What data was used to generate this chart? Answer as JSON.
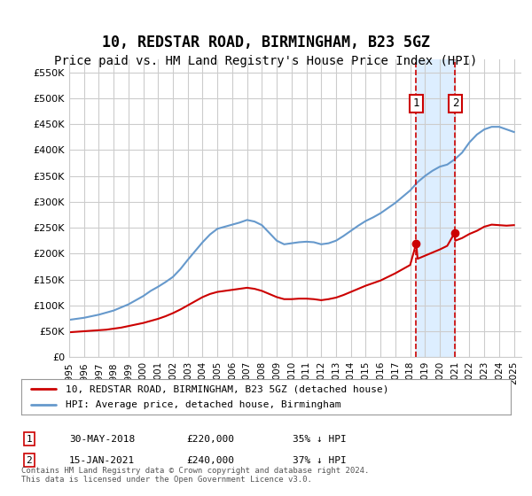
{
  "title": "10, REDSTAR ROAD, BIRMINGHAM, B23 5GZ",
  "subtitle": "Price paid vs. HM Land Registry's House Price Index (HPI)",
  "title_fontsize": 12,
  "subtitle_fontsize": 10,
  "ylabel_ticks": [
    "£0",
    "£50K",
    "£100K",
    "£150K",
    "£200K",
    "£250K",
    "£300K",
    "£350K",
    "£400K",
    "£450K",
    "£500K",
    "£550K"
  ],
  "ytick_values": [
    0,
    50000,
    100000,
    150000,
    200000,
    250000,
    300000,
    350000,
    400000,
    450000,
    500000,
    550000
  ],
  "ylim": [
    0,
    575000
  ],
  "xlim_start": 1995.0,
  "xlim_end": 2025.5,
  "background_color": "#ffffff",
  "grid_color": "#cccccc",
  "hpi_color": "#6699cc",
  "price_color": "#cc0000",
  "vline_color": "#cc0000",
  "highlight_fill": "#ddeeff",
  "sale1_x": 2018.41,
  "sale1_y": 220000,
  "sale2_x": 2021.04,
  "sale2_y": 240000,
  "legend_label1": "10, REDSTAR ROAD, BIRMINGHAM, B23 5GZ (detached house)",
  "legend_label2": "HPI: Average price, detached house, Birmingham",
  "annotation1": [
    "1",
    "30-MAY-2018",
    "£220,000",
    "35% ↓ HPI"
  ],
  "annotation2": [
    "2",
    "15-JAN-2021",
    "£240,000",
    "37% ↓ HPI"
  ],
  "footer": "Contains HM Land Registry data © Crown copyright and database right 2024.\nThis data is licensed under the Open Government Licence v3.0.",
  "hpi_years": [
    1995,
    1995.5,
    1996,
    1996.5,
    1997,
    1997.5,
    1998,
    1998.5,
    1999,
    1999.5,
    2000,
    2000.5,
    2001,
    2001.5,
    2002,
    2002.5,
    2003,
    2003.5,
    2004,
    2004.5,
    2005,
    2005.5,
    2006,
    2006.5,
    2007,
    2007.5,
    2008,
    2008.5,
    2009,
    2009.5,
    2010,
    2010.5,
    2011,
    2011.5,
    2012,
    2012.5,
    2013,
    2013.5,
    2014,
    2014.5,
    2015,
    2015.5,
    2016,
    2016.5,
    2017,
    2017.5,
    2018,
    2018.5,
    2019,
    2019.5,
    2020,
    2020.5,
    2021,
    2021.5,
    2022,
    2022.5,
    2023,
    2023.5,
    2024,
    2024.5,
    2025
  ],
  "hpi_values": [
    72000,
    74000,
    76000,
    79000,
    82000,
    86000,
    90000,
    96000,
    102000,
    110000,
    118000,
    128000,
    136000,
    145000,
    155000,
    170000,
    188000,
    205000,
    222000,
    237000,
    248000,
    252000,
    256000,
    260000,
    265000,
    262000,
    255000,
    240000,
    225000,
    218000,
    220000,
    222000,
    223000,
    222000,
    218000,
    220000,
    225000,
    234000,
    244000,
    254000,
    263000,
    270000,
    278000,
    288000,
    298000,
    310000,
    322000,
    338000,
    350000,
    360000,
    368000,
    372000,
    382000,
    395000,
    415000,
    430000,
    440000,
    445000,
    445000,
    440000,
    435000
  ],
  "price_years": [
    1995,
    1995.5,
    1996,
    1996.5,
    1997,
    1997.5,
    1998,
    1998.5,
    1999,
    1999.5,
    2000,
    2000.5,
    2001,
    2001.5,
    2002,
    2002.5,
    2003,
    2003.5,
    2004,
    2004.5,
    2005,
    2005.5,
    2006,
    2006.5,
    2007,
    2007.5,
    2008,
    2008.5,
    2009,
    2009.5,
    2010,
    2010.5,
    2011,
    2011.5,
    2012,
    2012.5,
    2013,
    2013.5,
    2014,
    2014.5,
    2015,
    2015.5,
    2016,
    2016.5,
    2017,
    2017.5,
    2018,
    2018.41,
    2018.5,
    2019,
    2019.5,
    2020,
    2020.5,
    2021,
    2021.04,
    2021.5,
    2022,
    2022.5,
    2023,
    2023.5,
    2024,
    2024.5,
    2025
  ],
  "price_values": [
    48000,
    49000,
    50000,
    51000,
    52000,
    53000,
    55000,
    57000,
    60000,
    63000,
    66000,
    70000,
    74000,
    79000,
    85000,
    92000,
    100000,
    108000,
    116000,
    122000,
    126000,
    128000,
    130000,
    132000,
    134000,
    132000,
    128000,
    122000,
    116000,
    112000,
    112000,
    113000,
    113000,
    112000,
    110000,
    112000,
    115000,
    120000,
    126000,
    132000,
    138000,
    143000,
    148000,
    155000,
    162000,
    170000,
    178000,
    220000,
    190000,
    196000,
    202000,
    208000,
    215000,
    240000,
    225000,
    230000,
    238000,
    244000,
    252000,
    256000,
    255000,
    254000,
    255000
  ]
}
